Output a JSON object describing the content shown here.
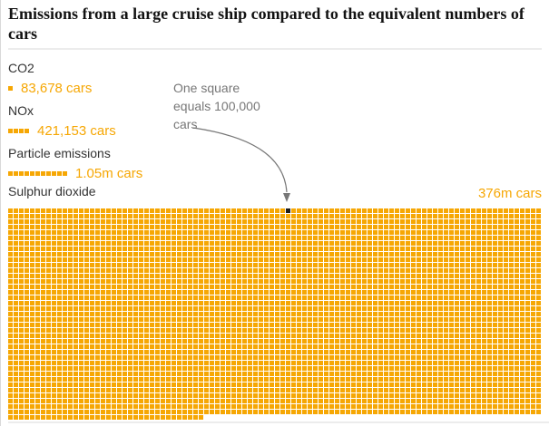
{
  "colors": {
    "accent_orange": "#f6a704",
    "highlight_square": "#1c1c1c",
    "title_black": "#121212",
    "label_gray": "#333333",
    "annotation_gray": "#777777",
    "divider_gray": "#ececec"
  },
  "chart_data": {
    "type": "waffle",
    "title": "Emissions from a large cruise ship compared to the equivalent numbers of cars",
    "unit_per_square": 100000,
    "unit_note": "One square equals 100,000 cars",
    "legend_position": "none",
    "grid": "off",
    "waffle_columns": 98,
    "highlight_square_index": 51,
    "series": [
      {
        "name": "CO2",
        "value": 83678,
        "value_label": "83,678 cars"
      },
      {
        "name": "NOx",
        "value": 421153,
        "value_label": "421,153 cars"
      },
      {
        "name": "Particle emissions",
        "value": 1050000,
        "value_label": "1.05m cars"
      },
      {
        "name": "Sulphur dioxide",
        "value": 376000000,
        "value_label": "376m cars"
      }
    ]
  }
}
